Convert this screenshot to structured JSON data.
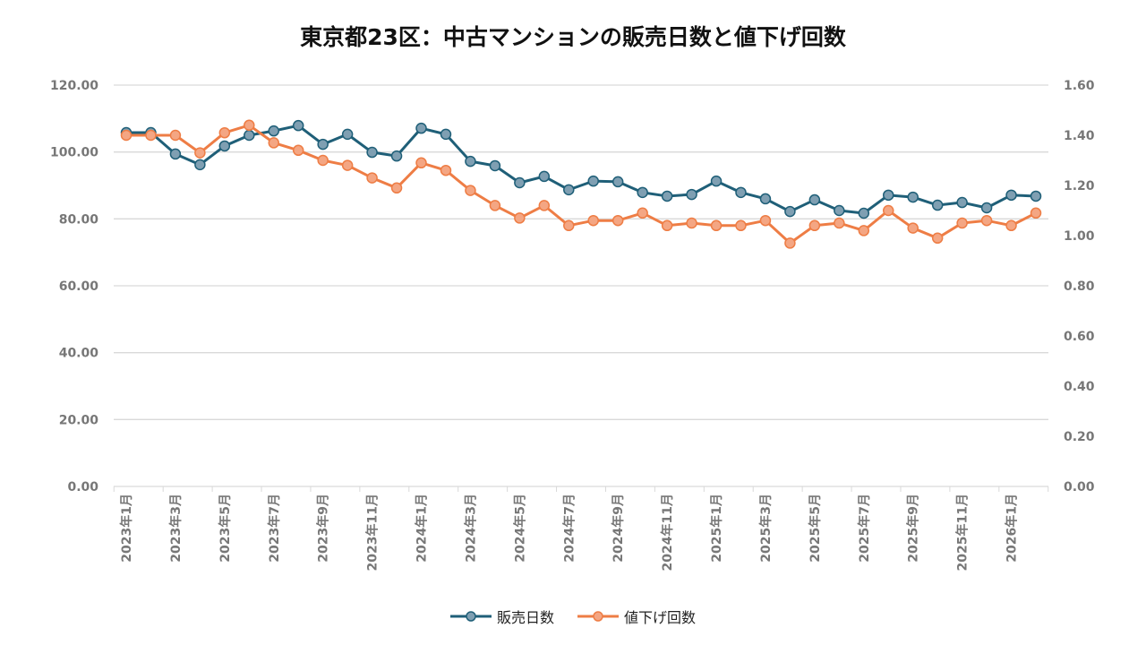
{
  "chart_data": {
    "type": "line",
    "title": "東京都23区：中古マンションの販売日数と値下げ回数",
    "x": [
      "2023年1月",
      "2023年2月",
      "2023年3月",
      "2023年4月",
      "2023年5月",
      "2023年6月",
      "2023年7月",
      "2023年8月",
      "2023年9月",
      "2023年10月",
      "2023年11月",
      "2023年12月",
      "2024年1月",
      "2024年2月",
      "2024年3月",
      "2024年4月",
      "2024年5月",
      "2024年6月",
      "2024年7月",
      "2024年8月",
      "2024年9月",
      "2024年10月",
      "2024年11月",
      "2024年12月",
      "2025年1月",
      "2025年2月",
      "2025年3月",
      "2025年4月",
      "2025年5月",
      "2025年6月",
      "2025年7月",
      "2025年8月",
      "2025年9月",
      "2025年10月",
      "2025年11月",
      "2025年12月",
      "2026年1月",
      "2026年2月"
    ],
    "x_tick_labels": [
      "2023年1月",
      "2023年3月",
      "2023年5月",
      "2023年7月",
      "2023年9月",
      "2023年11月",
      "2024年1月",
      "2024年3月",
      "2024年5月",
      "2024年7月",
      "2024年9月",
      "2024年11月",
      "2025年1月",
      "2025年3月",
      "2025年5月",
      "2025年7月",
      "2025年9月",
      "2025年11月",
      "2026年1月"
    ],
    "y_left": {
      "ylim": [
        0,
        120
      ],
      "ticks": [
        "0.00",
        "20.00",
        "40.00",
        "60.00",
        "80.00",
        "100.00",
        "120.00"
      ]
    },
    "y_right": {
      "ylim": [
        0,
        1.6
      ],
      "ticks": [
        "0.00",
        "0.20",
        "0.40",
        "0.60",
        "0.80",
        "1.00",
        "1.20",
        "1.40",
        "1.60"
      ]
    },
    "grid": true,
    "legend_position": "bottom",
    "series": [
      {
        "name": "販売日数",
        "axis": "left",
        "color": "#1f5f78",
        "marker_color": "#7f9fb2",
        "values": [
          105.8,
          105.8,
          99.4,
          96.2,
          101.8,
          105.0,
          106.3,
          107.9,
          102.3,
          105.3,
          99.9,
          98.8,
          107.1,
          105.3,
          97.2,
          95.9,
          90.8,
          92.7,
          88.7,
          91.3,
          91.1,
          87.9,
          86.8,
          87.3,
          91.3,
          87.9,
          86.0,
          82.2,
          85.7,
          82.5,
          81.7,
          87.1,
          86.5,
          84.1,
          84.9,
          83.3,
          87.1,
          86.8
        ]
      },
      {
        "name": "値下げ回数",
        "axis": "right",
        "color": "#ee7d45",
        "marker_color": "#f4a683",
        "values": [
          1.4,
          1.4,
          1.4,
          1.33,
          1.41,
          1.44,
          1.37,
          1.34,
          1.3,
          1.28,
          1.23,
          1.19,
          1.29,
          1.26,
          1.18,
          1.12,
          1.07,
          1.12,
          1.04,
          1.06,
          1.06,
          1.09,
          1.04,
          1.05,
          1.04,
          1.04,
          1.06,
          0.97,
          1.04,
          1.05,
          1.02,
          1.1,
          1.03,
          0.99,
          1.05,
          1.06,
          1.04,
          1.09
        ]
      }
    ]
  }
}
